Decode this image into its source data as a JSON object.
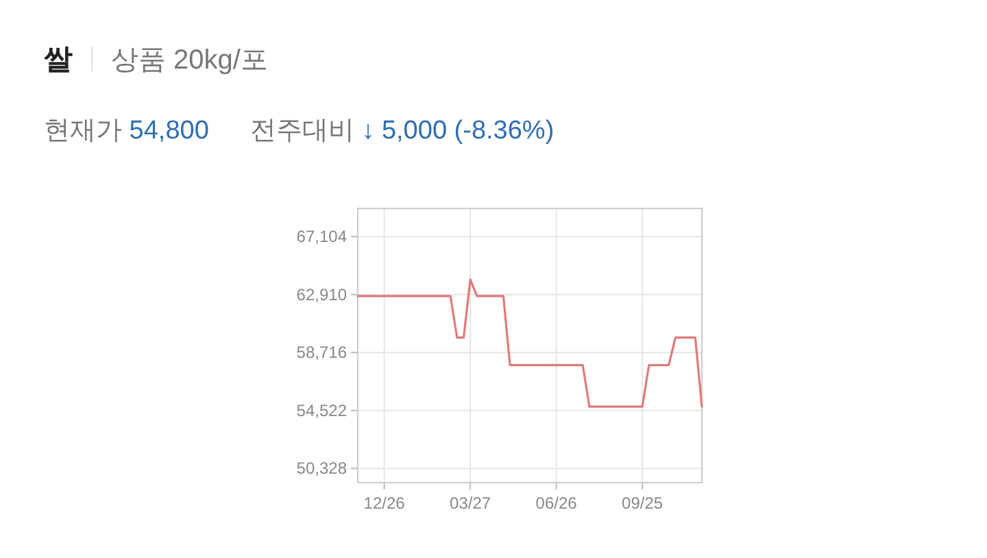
{
  "chart_data": {
    "type": "line",
    "title": "쌀",
    "subtitle": "상품 20kg/포",
    "annotations": [
      "현재가 54,800",
      "전주대비 ↓ 5,000 (-8.36%)"
    ],
    "categories": [
      null,
      null,
      null,
      null,
      "12/26",
      null,
      null,
      null,
      null,
      null,
      null,
      null,
      null,
      null,
      null,
      null,
      null,
      "03/27",
      null,
      null,
      null,
      null,
      null,
      null,
      null,
      null,
      null,
      null,
      null,
      null,
      "06/26",
      null,
      null,
      null,
      null,
      null,
      null,
      null,
      null,
      null,
      null,
      null,
      null,
      "09/25",
      null,
      null,
      null,
      null,
      null,
      null,
      null,
      null,
      null
    ],
    "series": [
      {
        "color": "#e07a7a",
        "values": [
          62800,
          62800,
          62800,
          62800,
          62800,
          62800,
          62800,
          62800,
          62800,
          62800,
          62800,
          62800,
          62800,
          62800,
          62800,
          59800,
          59800,
          64000,
          62800,
          62800,
          62800,
          62800,
          62800,
          57800,
          57800,
          57800,
          57800,
          57800,
          57800,
          57800,
          57800,
          57800,
          57800,
          57800,
          57800,
          54800,
          54800,
          54800,
          54800,
          54800,
          54800,
          54800,
          54800,
          54800,
          57800,
          57800,
          57800,
          57800,
          59800,
          59800,
          59800,
          59800,
          54800
        ]
      }
    ],
    "ylim": [
      49300,
      69150
    ],
    "yticks": [
      {
        "value": 50328,
        "label": "50,328"
      },
      {
        "value": 54522,
        "label": "54,522"
      },
      {
        "value": 58716,
        "label": "58,716"
      },
      {
        "value": 62910,
        "label": "62,910"
      },
      {
        "value": 67104,
        "label": "67,104"
      }
    ],
    "grid": true
  }
}
